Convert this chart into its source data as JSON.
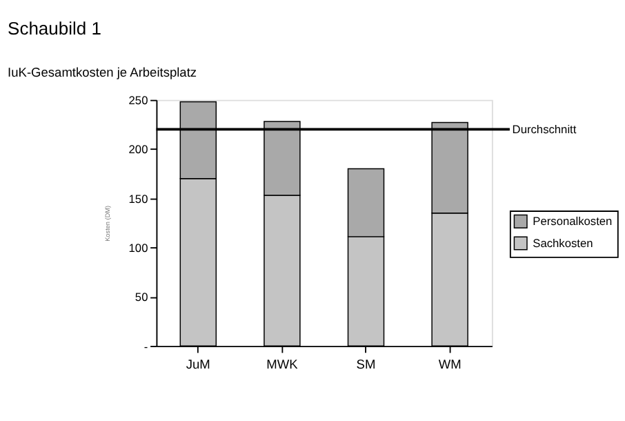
{
  "chart_data": {
    "type": "bar",
    "title": "Schaubild 1",
    "subtitle": "IuK-Gesamtkosten je Arbeitsplatz",
    "ylabel": "Kosten (DM)",
    "categories": [
      "JuM",
      "MWK",
      "SM",
      "WM"
    ],
    "series": [
      {
        "name": "Sachkosten",
        "color": "#c4c4c4",
        "values": [
          170,
          153,
          111,
          135
        ]
      },
      {
        "name": "Personalkosten",
        "color": "#a9a9a9",
        "values": [
          78,
          75,
          69,
          92
        ]
      }
    ],
    "stacked": true,
    "ylim": [
      0,
      250
    ],
    "yticks": [
      {
        "value": 0,
        "label": "-"
      },
      50,
      100,
      150,
      200,
      250
    ],
    "ref_lines": [
      {
        "axis": "y",
        "value": 220,
        "label": "Durchschnitt",
        "color": "#000000"
      }
    ],
    "grid": false,
    "legend": "right"
  }
}
